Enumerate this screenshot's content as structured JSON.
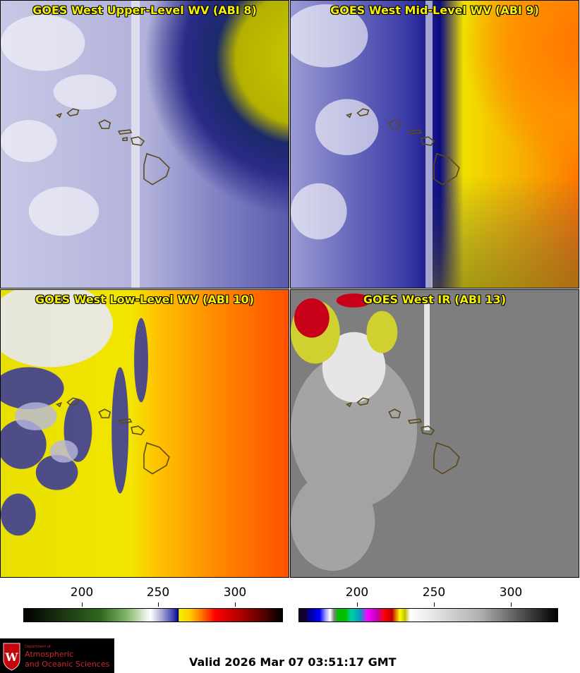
{
  "panels": [
    {
      "title": "GOES West Upper-Level WV (ABI 8)"
    },
    {
      "title": "GOES West Mid-Level WV (ABI 9)"
    },
    {
      "title": "GOES West Low-Level WV (ABI 10)"
    },
    {
      "title": "GOES West IR (ABI 13)"
    }
  ],
  "colorbars": {
    "water_vapor": {
      "ticks": [
        "200",
        "250",
        "300"
      ]
    },
    "infrared": {
      "ticks": [
        "200",
        "250",
        "300"
      ]
    }
  },
  "logo": {
    "line1": "Department of",
    "line2": "Atmospheric",
    "line3": "and Oceanic Sciences"
  },
  "valid_time": "Valid 2026 Mar 07 03:51:17 GMT",
  "colors": {
    "title_yellow": "#f4f000",
    "coastline": "#5a4a18",
    "logo_red": "#d0282a"
  }
}
